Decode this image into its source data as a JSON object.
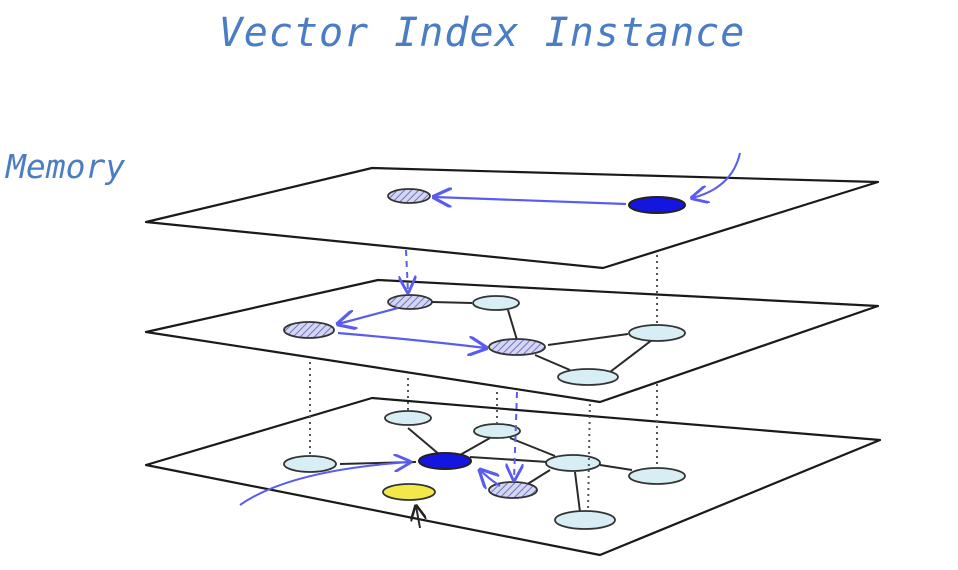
{
  "title": "Vector Index Instance",
  "memory_label": "Memory",
  "colors": {
    "label_text": "#4a7dc4",
    "search_path": "#5a5cf0",
    "entry_node": "#1515e0",
    "visited_node_hatch": "#7a80c8",
    "node_fill": "#d7eff4",
    "query_node": "#f2e84a"
  },
  "layers": [
    {
      "id": "top",
      "node_count": 2
    },
    {
      "id": "middle",
      "node_count": 6
    },
    {
      "id": "bottom",
      "node_count": 9
    }
  ]
}
